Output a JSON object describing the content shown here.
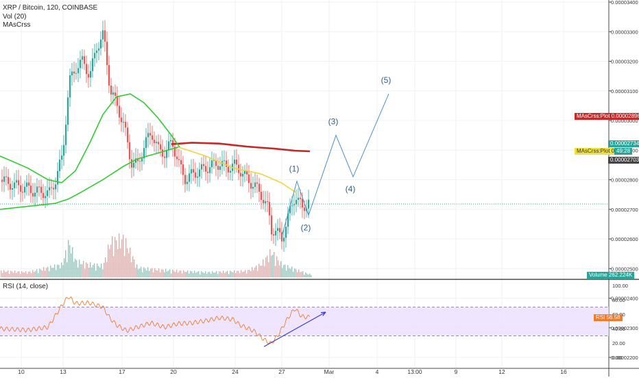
{
  "symbol_title": "XRP / Bitcoin, 120, COINBASE",
  "vol_label": "Vol (20)",
  "ma_label": "MAsCrss",
  "rsi_label": "RSI (14, close)",
  "price_axis": [
    "0.00003400",
    "0.00003300",
    "0.00003200",
    "0.00003100",
    "0.00003000",
    "0.00002900",
    "0.00002800",
    "0.00002700",
    "0.00002600",
    "0.00002500",
    "0.00002400",
    "0.00002300",
    "0.00002200"
  ],
  "rsi_axis": [
    "100.00",
    "80.00",
    "60.00",
    "40.00",
    "20.00",
    "0.00"
  ],
  "time_axis": [
    "10",
    "13",
    "17",
    "20",
    "24",
    "27",
    "Mar",
    "4",
    "13:00",
    "9",
    "12",
    "16"
  ],
  "badges": {
    "ma_red_name": "MAsCrss:Plot",
    "ma_red_value": "0.00002896",
    "last_price": "0.00002734",
    "ma_yellow_name": "MAsCrss:Plot",
    "ma_yellow_value": "0.00",
    "countdown": "49:28",
    "prev_price": "0.00002703",
    "volume_name": "Volume",
    "volume_value": "262.224K",
    "rsi_name": "RSI",
    "rsi_value": "56.58"
  },
  "wave_labels": [
    "(1)",
    "(2)",
    "(3)",
    "(4)",
    "(5)"
  ],
  "colors": {
    "up": "#26a69a",
    "down": "#ef5350",
    "ma_red": "#c62828",
    "ma_yellow": "#f2d33a",
    "ma_green": "#2ecc2e",
    "rsi_line": "#f07a2a",
    "rsi_band": "#eadcff",
    "wave": "#4a90c8",
    "trend": "#3a3ad0",
    "last_price": "#26a69a"
  },
  "chart_data": {
    "type": "candlestick",
    "title": "XRP / Bitcoin, 120, COINBASE",
    "y_unit": "BTC",
    "ylim": [
      2.19e-05,
      3.41e-05
    ],
    "close_path": [
      [
        0,
        2.8e-05
      ],
      [
        10,
        2.79e-05
      ],
      [
        20,
        2.78e-05
      ],
      [
        30,
        2.775e-05
      ],
      [
        40,
        2.77e-05
      ],
      [
        50,
        2.76e-05
      ],
      [
        60,
        2.76e-05
      ],
      [
        70,
        2.75e-05
      ],
      [
        80,
        2.8e-05
      ],
      [
        90,
        2.88e-05
      ],
      [
        100,
        3.13e-05
      ],
      [
        110,
        3.18e-05
      ],
      [
        120,
        3.2e-05
      ],
      [
        130,
        3.15e-05
      ],
      [
        140,
        3.25e-05
      ],
      [
        150,
        3.29e-05
      ],
      [
        160,
        3.1e-05
      ],
      [
        170,
        3.05e-05
      ],
      [
        180,
        2.98e-05
      ],
      [
        190,
        2.86e-05
      ],
      [
        200,
        2.85e-05
      ],
      [
        210,
        2.92e-05
      ],
      [
        220,
        2.96e-05
      ],
      [
        230,
        2.9e-05
      ],
      [
        240,
        2.89e-05
      ],
      [
        250,
        2.93e-05
      ],
      [
        260,
        2.85e-05
      ],
      [
        270,
        2.8e-05
      ],
      [
        280,
        2.82e-05
      ],
      [
        290,
        2.83e-05
      ],
      [
        300,
        2.84e-05
      ],
      [
        310,
        2.85e-05
      ],
      [
        320,
        2.855e-05
      ],
      [
        330,
        2.84e-05
      ],
      [
        340,
        2.85e-05
      ],
      [
        350,
        2.83e-05
      ],
      [
        360,
        2.8e-05
      ],
      [
        370,
        2.78e-05
      ],
      [
        380,
        2.75e-05
      ],
      [
        390,
        2.7e-05
      ],
      [
        395,
        2.63e-05
      ],
      [
        400,
        2.63e-05
      ],
      [
        410,
        2.6e-05
      ],
      [
        420,
        2.68e-05
      ],
      [
        430,
        2.75e-05
      ],
      [
        440,
        2.7e-05
      ],
      [
        450,
        2.734e-05
      ]
    ],
    "moving_averages": [
      {
        "color_key": "ma_red",
        "points": [
          [
            250,
            2.92e-05
          ],
          [
            280,
            2.925e-05
          ],
          [
            320,
            2.922e-05
          ],
          [
            360,
            2.912e-05
          ],
          [
            400,
            2.905e-05
          ],
          [
            430,
            2.898e-05
          ],
          [
            452,
            2.896e-05
          ]
        ]
      },
      {
        "color_key": "ma_yellow",
        "points": [
          [
            260,
            2.91e-05
          ],
          [
            300,
            2.88e-05
          ],
          [
            340,
            2.84e-05
          ],
          [
            380,
            2.82e-05
          ],
          [
            410,
            2.79e-05
          ],
          [
            433,
            2.755e-05
          ]
        ]
      },
      {
        "color_key": "ma_green",
        "points": [
          [
            0,
            2.7e-05
          ],
          [
            40,
            2.71e-05
          ],
          [
            80,
            2.72e-05
          ],
          [
            100,
            2.735e-05
          ],
          [
            120,
            2.76e-05
          ],
          [
            150,
            2.8e-05
          ],
          [
            180,
            2.845e-05
          ],
          [
            200,
            2.87e-05
          ],
          [
            230,
            2.89e-05
          ],
          [
            260,
            2.91e-05
          ]
        ]
      },
      {
        "color_key": "ma_green",
        "points": [
          [
            0,
            2.88e-05
          ],
          [
            40,
            2.84e-05
          ],
          [
            70,
            2.8e-05
          ],
          [
            90,
            2.79e-05
          ],
          [
            110,
            2.83e-05
          ],
          [
            130,
            2.92e-05
          ],
          [
            150,
            3.02e-05
          ],
          [
            170,
            3.08e-05
          ],
          [
            190,
            3.09e-05
          ],
          [
            210,
            3.06e-05
          ],
          [
            230,
            3.01e-05
          ],
          [
            250,
            2.95e-05
          ],
          [
            262,
            2.91e-05
          ]
        ]
      }
    ],
    "volume_path": [
      [
        0,
        10
      ],
      [
        40,
        8
      ],
      [
        90,
        20
      ],
      [
        100,
        55
      ],
      [
        110,
        25
      ],
      [
        130,
        20
      ],
      [
        150,
        18
      ],
      [
        160,
        55
      ],
      [
        180,
        60
      ],
      [
        200,
        15
      ],
      [
        230,
        12
      ],
      [
        260,
        10
      ],
      [
        300,
        8
      ],
      [
        360,
        10
      ],
      [
        380,
        20
      ],
      [
        395,
        40
      ],
      [
        410,
        20
      ],
      [
        450,
        5
      ]
    ],
    "volume_ylim": [
      0,
      100
    ],
    "rsi": {
      "ylim": [
        0,
        100
      ],
      "upper_band": 70,
      "lower_band": 30,
      "points": [
        [
          0,
          40
        ],
        [
          40,
          38
        ],
        [
          70,
          42
        ],
        [
          90,
          72
        ],
        [
          100,
          85
        ],
        [
          110,
          75
        ],
        [
          130,
          76
        ],
        [
          150,
          70
        ],
        [
          160,
          55
        ],
        [
          170,
          45
        ],
        [
          185,
          37
        ],
        [
          200,
          42
        ],
        [
          220,
          48
        ],
        [
          240,
          42
        ],
        [
          260,
          47
        ],
        [
          280,
          48
        ],
        [
          300,
          51
        ],
        [
          320,
          55
        ],
        [
          340,
          53
        ],
        [
          350,
          45
        ],
        [
          370,
          37
        ],
        [
          385,
          25
        ],
        [
          395,
          19
        ],
        [
          405,
          30
        ],
        [
          420,
          55
        ],
        [
          430,
          68
        ],
        [
          440,
          57
        ],
        [
          450,
          56
        ]
      ]
    },
    "elliott_wave_projection": [
      [
        410,
        2.6e-05
      ],
      [
        433,
        2.795e-05
      ],
      [
        450,
        2.68e-05
      ],
      [
        490,
        2.95e-05
      ],
      [
        515,
        2.81e-05
      ],
      [
        567,
        3.09e-05
      ]
    ],
    "rsi_trendline": [
      [
        385,
        15
      ],
      [
        475,
        63
      ]
    ]
  }
}
